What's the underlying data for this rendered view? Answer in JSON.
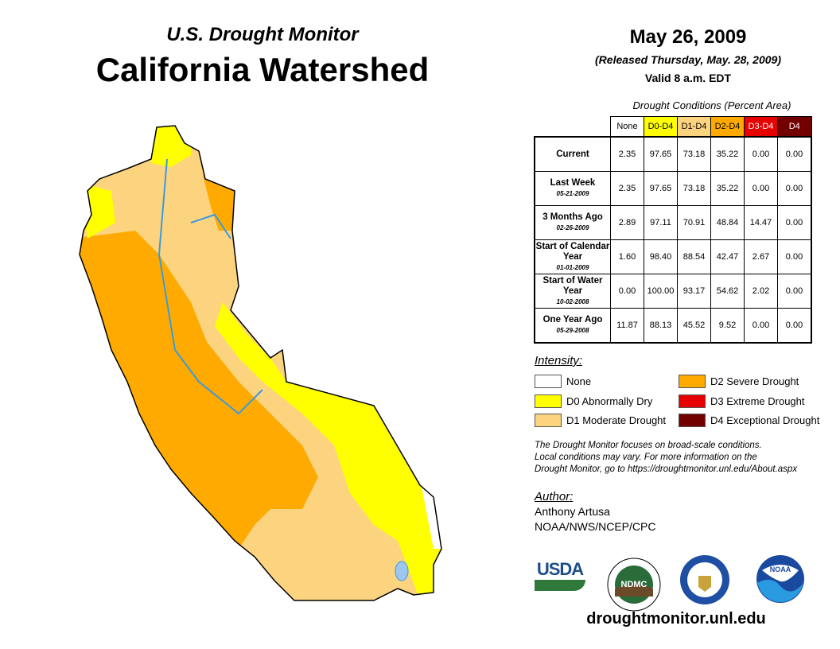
{
  "header": {
    "subtitle": "U.S. Drought Monitor",
    "title": "California Watershed",
    "date": "May 26, 2009",
    "released": "(Released Thursday, May. 28, 2009)",
    "valid": "Valid 8 a.m. EDT"
  },
  "table": {
    "caption": "Drought Conditions (Percent Area)",
    "columns": [
      "None",
      "D0-D4",
      "D1-D4",
      "D2-D4",
      "D3-D4",
      "D4"
    ],
    "column_colors": [
      "#ffffff",
      "#ffff00",
      "#fcd37f",
      "#ffaa00",
      "#e60000",
      "#730000"
    ],
    "rows": [
      {
        "label": "Current",
        "date": "",
        "values": [
          "2.35",
          "97.65",
          "73.18",
          "35.22",
          "0.00",
          "0.00"
        ]
      },
      {
        "label": "Last Week",
        "date": "05-21-2009",
        "values": [
          "2.35",
          "97.65",
          "73.18",
          "35.22",
          "0.00",
          "0.00"
        ]
      },
      {
        "label": "3 Months Ago",
        "date": "02-26-2009",
        "values": [
          "2.89",
          "97.11",
          "70.91",
          "48.84",
          "14.47",
          "0.00"
        ]
      },
      {
        "label": "Start of Calendar Year",
        "date": "01-01-2009",
        "values": [
          "1.60",
          "98.40",
          "88.54",
          "42.47",
          "2.67",
          "0.00"
        ]
      },
      {
        "label": "Start of Water Year",
        "date": "10-02-2008",
        "values": [
          "0.00",
          "100.00",
          "93.17",
          "54.62",
          "2.02",
          "0.00"
        ]
      },
      {
        "label": "One Year Ago",
        "date": "05-29-2008",
        "values": [
          "11.87",
          "88.13",
          "45.52",
          "9.52",
          "0.00",
          "0.00"
        ]
      }
    ]
  },
  "legend": {
    "title": "Intensity:",
    "items": [
      {
        "label": "None",
        "color": "#ffffff"
      },
      {
        "label": "D0 Abnormally Dry",
        "color": "#ffff00"
      },
      {
        "label": "D1 Moderate Drought",
        "color": "#fcd37f"
      },
      {
        "label": "D2 Severe Drought",
        "color": "#ffaa00"
      },
      {
        "label": "D3 Extreme Drought",
        "color": "#e60000"
      },
      {
        "label": "D4 Exceptional Drought",
        "color": "#730000"
      }
    ]
  },
  "note": [
    "The Drought Monitor focuses on broad-scale conditions.",
    "Local conditions may vary. For more information on the",
    "Drought Monitor, go to https://droughtmonitor.unl.edu/About.aspx"
  ],
  "author": {
    "title": "Author:",
    "name": "Anthony Artusa",
    "org": "NOAA/NWS/NCEP/CPC"
  },
  "logos": {
    "usda": "USDA",
    "ndmc": "NDMC",
    "noaa": "NOAA"
  },
  "footer_url": "droughtmonitor.unl.edu"
}
